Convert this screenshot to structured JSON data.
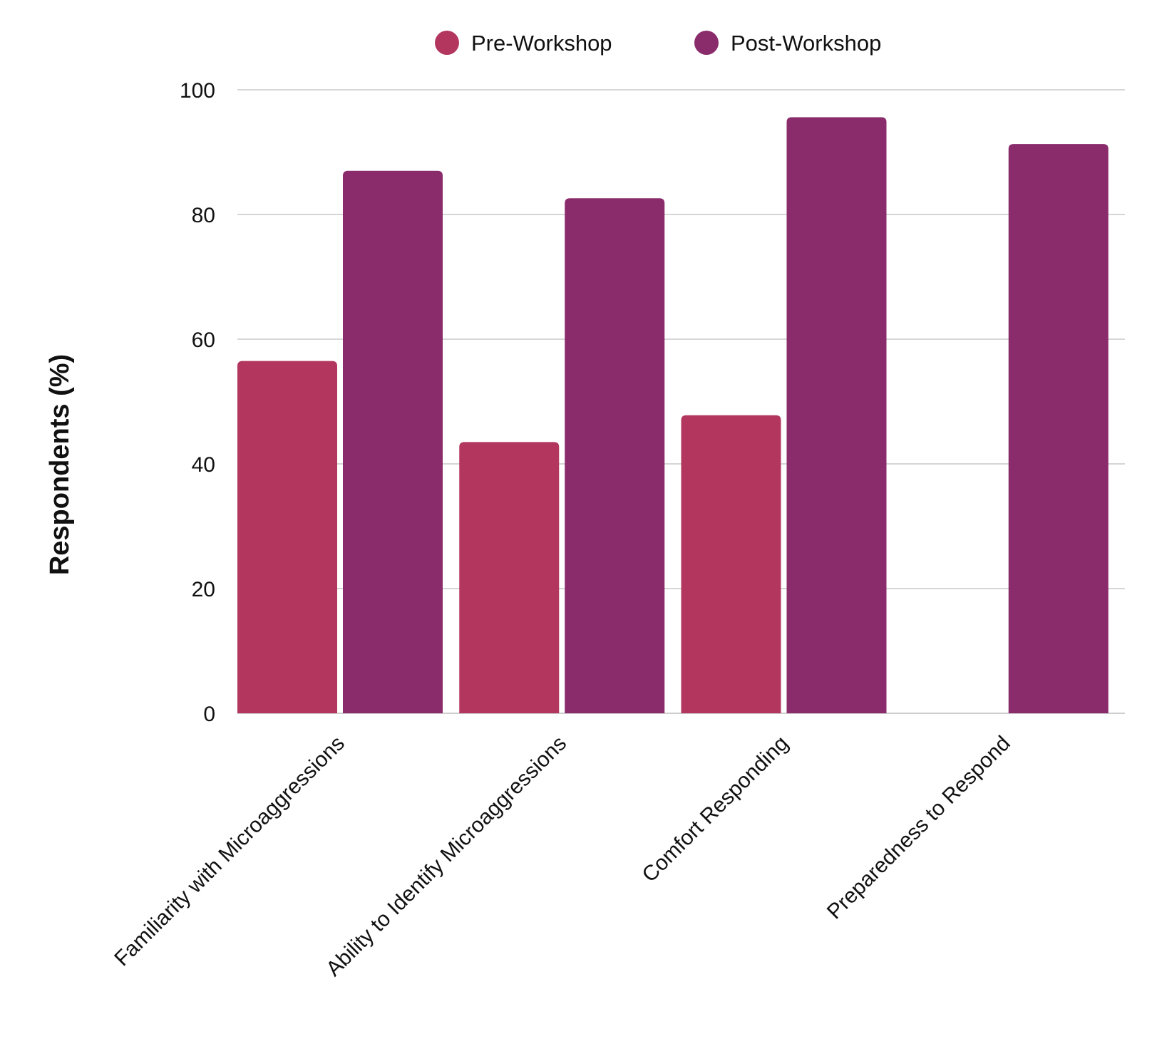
{
  "chart_data": {
    "type": "bar",
    "categories": [
      "Familiarity with Microaggressions",
      "Ability to Identify Microaggressions",
      "Comfort Responding",
      "Preparedness to Respond"
    ],
    "series": [
      {
        "name": "Pre-Workshop",
        "color": "#b3365f",
        "values": [
          56.5,
          43.5,
          47.8,
          0
        ]
      },
      {
        "name": "Post-Workshop",
        "color": "#8a2b6b",
        "values": [
          87,
          82.6,
          95.6,
          91.3
        ]
      }
    ],
    "title": "",
    "xlabel": "",
    "ylabel": "Respondents (%)",
    "ylim": [
      0,
      100
    ],
    "yticks": [
      0,
      20,
      40,
      60,
      80,
      100
    ],
    "grid": true,
    "legend_position": "top-center"
  }
}
